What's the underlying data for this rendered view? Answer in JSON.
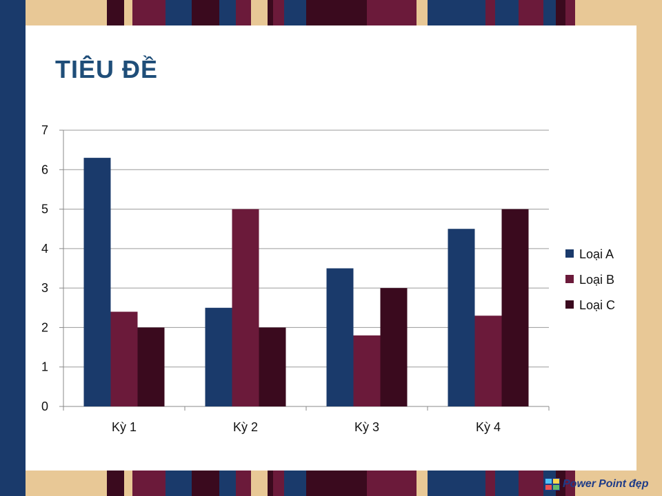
{
  "slide": {
    "title": "TIÊU ĐỀ"
  },
  "colors": {
    "navy": "#1A3A6B",
    "maroon": "#6B1A3A",
    "dark": "#3A0A1E",
    "tan": "#E8C896",
    "title": "#1F4E79"
  },
  "chart_data": {
    "type": "bar",
    "categories": [
      "Kỳ 1",
      "Kỳ 2",
      "Kỳ 3",
      "Kỳ 4"
    ],
    "series": [
      {
        "name": "Loại A",
        "color": "#1A3A6B",
        "values": [
          6.3,
          2.5,
          3.5,
          4.5
        ]
      },
      {
        "name": "Loại B",
        "color": "#6B1A3A",
        "values": [
          2.4,
          5,
          1.8,
          2.3
        ]
      },
      {
        "name": "Loại C",
        "color": "#3A0A1E",
        "values": [
          2,
          2,
          3,
          5
        ]
      }
    ],
    "ylim": [
      0,
      7
    ],
    "yticks": [
      0,
      1,
      2,
      3,
      4,
      5,
      6,
      7
    ],
    "grid": true,
    "legend": "right"
  },
  "logo": {
    "name": "PowerPoint đẹp",
    "part1": "Power",
    "part2": "Point",
    "part3": "đẹp"
  }
}
